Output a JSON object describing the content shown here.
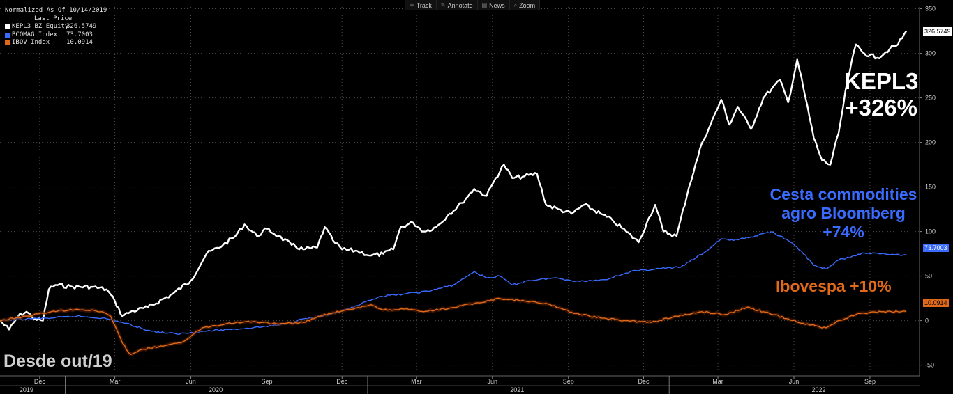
{
  "legend": {
    "header1": "Normalized As Of 10/14/2019",
    "header2": "Last Price",
    "items": [
      {
        "name": "KEPL3 BZ Equity",
        "value": "326.5749",
        "color": "#ffffff"
      },
      {
        "name": "BCOMAG Index",
        "value": "73.7003",
        "color": "#3a6bff"
      },
      {
        "name": "IBOV Index",
        "value": "10.0914",
        "color": "#e06a1a"
      }
    ]
  },
  "toolbar": {
    "items": [
      {
        "label": "Track",
        "icon": "crosshair-icon"
      },
      {
        "label": "Annotate",
        "icon": "pencil-icon"
      },
      {
        "label": "News",
        "icon": "news-icon"
      },
      {
        "label": "Zoom",
        "icon": "magnifier-icon"
      }
    ]
  },
  "annotations": {
    "kepl_line1": "KEPL3",
    "kepl_line2": "+326%",
    "bcom_line1": "Cesta commodities",
    "bcom_line2": "agro Bloomberg",
    "bcom_line3": "+74%",
    "ibov": "Ibovespa +10%",
    "since": "Desde out/19"
  },
  "price_tags": {
    "kepl": "326.5749",
    "bcom": "73.7003",
    "ibov": "10.0914"
  },
  "chart_data": {
    "type": "line",
    "y_ticks": [
      -50,
      0,
      50,
      100,
      150,
      200,
      250,
      300,
      350
    ],
    "ylim": [
      -62,
      352
    ],
    "xlim": [
      "2019-10-14",
      "2022-10-31"
    ],
    "x_month_ticks": [
      {
        "label": "Dec",
        "date": "2019-12-01"
      },
      {
        "label": "Mar",
        "date": "2020-03-01"
      },
      {
        "label": "Jun",
        "date": "2020-06-01"
      },
      {
        "label": "Sep",
        "date": "2020-09-01"
      },
      {
        "label": "Dec",
        "date": "2020-12-01"
      },
      {
        "label": "Mar",
        "date": "2021-03-01"
      },
      {
        "label": "Jun",
        "date": "2021-06-01"
      },
      {
        "label": "Sep",
        "date": "2021-09-01"
      },
      {
        "label": "Dec",
        "date": "2021-12-01"
      },
      {
        "label": "Mar",
        "date": "2022-03-01"
      },
      {
        "label": "Jun",
        "date": "2022-06-01"
      },
      {
        "label": "Sep",
        "date": "2022-09-01"
      }
    ],
    "x_year_ticks": [
      {
        "label": "2019",
        "date": "2019-11-15"
      },
      {
        "label": "2020",
        "date": "2020-07-01"
      },
      {
        "label": "2021",
        "date": "2021-07-01"
      },
      {
        "label": "2022",
        "date": "2022-07-01"
      }
    ],
    "year_separators": [
      "2020-01-01",
      "2021-01-01",
      "2022-01-01"
    ],
    "grid": true,
    "series": [
      {
        "name": "KEPL3 BZ Equity",
        "color": "#ffffff",
        "points": [
          [
            "2019-10-14",
            0
          ],
          [
            "2019-10-25",
            -10
          ],
          [
            "2019-11-05",
            5
          ],
          [
            "2019-11-15",
            10
          ],
          [
            "2019-11-25",
            2
          ],
          [
            "2019-12-05",
            0
          ],
          [
            "2019-12-12",
            35
          ],
          [
            "2019-12-20",
            40
          ],
          [
            "2020-01-10",
            38
          ],
          [
            "2020-02-01",
            38
          ],
          [
            "2020-02-20",
            35
          ],
          [
            "2020-03-01",
            22
          ],
          [
            "2020-03-10",
            5
          ],
          [
            "2020-03-20",
            10
          ],
          [
            "2020-04-10",
            15
          ],
          [
            "2020-05-10",
            30
          ],
          [
            "2020-06-01",
            45
          ],
          [
            "2020-06-20",
            75
          ],
          [
            "2020-07-10",
            85
          ],
          [
            "2020-07-25",
            95
          ],
          [
            "2020-08-05",
            108
          ],
          [
            "2020-08-20",
            95
          ],
          [
            "2020-09-01",
            103
          ],
          [
            "2020-09-15",
            95
          ],
          [
            "2020-10-01",
            85
          ],
          [
            "2020-10-15",
            80
          ],
          [
            "2020-11-01",
            82
          ],
          [
            "2020-11-10",
            105
          ],
          [
            "2020-11-20",
            90
          ],
          [
            "2020-12-01",
            80
          ],
          [
            "2020-12-20",
            78
          ],
          [
            "2021-01-05",
            73
          ],
          [
            "2021-01-20",
            75
          ],
          [
            "2021-02-01",
            80
          ],
          [
            "2021-02-10",
            105
          ],
          [
            "2021-02-25",
            110
          ],
          [
            "2021-03-10",
            100
          ],
          [
            "2021-03-25",
            105
          ],
          [
            "2021-04-10",
            120
          ],
          [
            "2021-04-25",
            132
          ],
          [
            "2021-05-10",
            148
          ],
          [
            "2021-05-25",
            140
          ],
          [
            "2021-06-05",
            160
          ],
          [
            "2021-06-15",
            175
          ],
          [
            "2021-06-25",
            160
          ],
          [
            "2021-07-10",
            162
          ],
          [
            "2021-07-25",
            165
          ],
          [
            "2021-08-05",
            130
          ],
          [
            "2021-08-20",
            125
          ],
          [
            "2021-09-05",
            120
          ],
          [
            "2021-09-20",
            130
          ],
          [
            "2021-10-10",
            120
          ],
          [
            "2021-10-25",
            112
          ],
          [
            "2021-11-10",
            100
          ],
          [
            "2021-11-25",
            88
          ],
          [
            "2021-12-05",
            110
          ],
          [
            "2021-12-15",
            130
          ],
          [
            "2021-12-25",
            100
          ],
          [
            "2022-01-10",
            95
          ],
          [
            "2022-01-25",
            150
          ],
          [
            "2022-02-10",
            200
          ],
          [
            "2022-02-20",
            220
          ],
          [
            "2022-03-05",
            248
          ],
          [
            "2022-03-15",
            220
          ],
          [
            "2022-03-25",
            240
          ],
          [
            "2022-04-10",
            215
          ],
          [
            "2022-04-25",
            250
          ],
          [
            "2022-05-05",
            260
          ],
          [
            "2022-05-15",
            270
          ],
          [
            "2022-05-25",
            245
          ],
          [
            "2022-06-05",
            293
          ],
          [
            "2022-06-15",
            250
          ],
          [
            "2022-06-25",
            205
          ],
          [
            "2022-07-05",
            180
          ],
          [
            "2022-07-15",
            175
          ],
          [
            "2022-07-25",
            210
          ],
          [
            "2022-08-05",
            270
          ],
          [
            "2022-08-15",
            310
          ],
          [
            "2022-08-25",
            300
          ],
          [
            "2022-09-10",
            295
          ],
          [
            "2022-09-25",
            305
          ],
          [
            "2022-10-05",
            310
          ],
          [
            "2022-10-15",
            325
          ]
        ]
      },
      {
        "name": "BCOMAG Index",
        "color": "#3a6bff",
        "points": [
          [
            "2019-10-14",
            0
          ],
          [
            "2019-11-15",
            2
          ],
          [
            "2019-12-15",
            3
          ],
          [
            "2020-01-15",
            5
          ],
          [
            "2020-02-15",
            3
          ],
          [
            "2020-03-10",
            -2
          ],
          [
            "2020-04-15",
            -12
          ],
          [
            "2020-05-15",
            -15
          ],
          [
            "2020-06-15",
            -12
          ],
          [
            "2020-07-15",
            -10
          ],
          [
            "2020-08-15",
            -8
          ],
          [
            "2020-09-15",
            -5
          ],
          [
            "2020-10-15",
            2
          ],
          [
            "2020-11-15",
            6
          ],
          [
            "2020-12-15",
            15
          ],
          [
            "2021-01-15",
            27
          ],
          [
            "2021-02-15",
            30
          ],
          [
            "2021-03-15",
            33
          ],
          [
            "2021-04-15",
            40
          ],
          [
            "2021-05-10",
            55
          ],
          [
            "2021-05-25",
            48
          ],
          [
            "2021-06-10",
            50
          ],
          [
            "2021-06-25",
            40
          ],
          [
            "2021-07-15",
            45
          ],
          [
            "2021-08-15",
            48
          ],
          [
            "2021-09-15",
            44
          ],
          [
            "2021-10-15",
            46
          ],
          [
            "2021-11-15",
            55
          ],
          [
            "2021-12-15",
            58
          ],
          [
            "2022-01-15",
            60
          ],
          [
            "2022-02-15",
            78
          ],
          [
            "2022-03-05",
            92
          ],
          [
            "2022-03-20",
            90
          ],
          [
            "2022-04-15",
            95
          ],
          [
            "2022-05-05",
            100
          ],
          [
            "2022-05-25",
            90
          ],
          [
            "2022-06-10",
            78
          ],
          [
            "2022-06-25",
            62
          ],
          [
            "2022-07-10",
            58
          ],
          [
            "2022-07-25",
            68
          ],
          [
            "2022-08-10",
            72
          ],
          [
            "2022-08-25",
            76
          ],
          [
            "2022-09-15",
            75
          ],
          [
            "2022-10-15",
            74
          ]
        ]
      },
      {
        "name": "IBOV Index",
        "color": "#e06a1a",
        "points": [
          [
            "2019-10-14",
            0
          ],
          [
            "2019-11-15",
            5
          ],
          [
            "2019-12-15",
            10
          ],
          [
            "2020-01-15",
            13
          ],
          [
            "2020-02-15",
            10
          ],
          [
            "2020-02-25",
            5
          ],
          [
            "2020-03-10",
            -25
          ],
          [
            "2020-03-20",
            -38
          ],
          [
            "2020-04-05",
            -32
          ],
          [
            "2020-05-01",
            -28
          ],
          [
            "2020-05-20",
            -25
          ],
          [
            "2020-06-15",
            -8
          ],
          [
            "2020-07-15",
            -3
          ],
          [
            "2020-08-15",
            -1
          ],
          [
            "2020-09-15",
            -4
          ],
          [
            "2020-10-15",
            -2
          ],
          [
            "2020-11-15",
            8
          ],
          [
            "2020-12-15",
            13
          ],
          [
            "2021-01-05",
            18
          ],
          [
            "2021-01-20",
            12
          ],
          [
            "2021-02-15",
            13
          ],
          [
            "2021-03-10",
            10
          ],
          [
            "2021-04-10",
            14
          ],
          [
            "2021-05-15",
            20
          ],
          [
            "2021-06-10",
            25
          ],
          [
            "2021-07-10",
            22
          ],
          [
            "2021-08-10",
            18
          ],
          [
            "2021-09-10",
            8
          ],
          [
            "2021-10-10",
            3
          ],
          [
            "2021-11-10",
            0
          ],
          [
            "2021-12-10",
            -2
          ],
          [
            "2022-01-10",
            5
          ],
          [
            "2022-02-10",
            10
          ],
          [
            "2022-03-10",
            7
          ],
          [
            "2022-04-05",
            15
          ],
          [
            "2022-04-25",
            10
          ],
          [
            "2022-05-25",
            2
          ],
          [
            "2022-06-20",
            -5
          ],
          [
            "2022-07-10",
            -8
          ],
          [
            "2022-07-25",
            0
          ],
          [
            "2022-08-20",
            8
          ],
          [
            "2022-09-15",
            10
          ],
          [
            "2022-10-15",
            10
          ]
        ]
      }
    ]
  }
}
